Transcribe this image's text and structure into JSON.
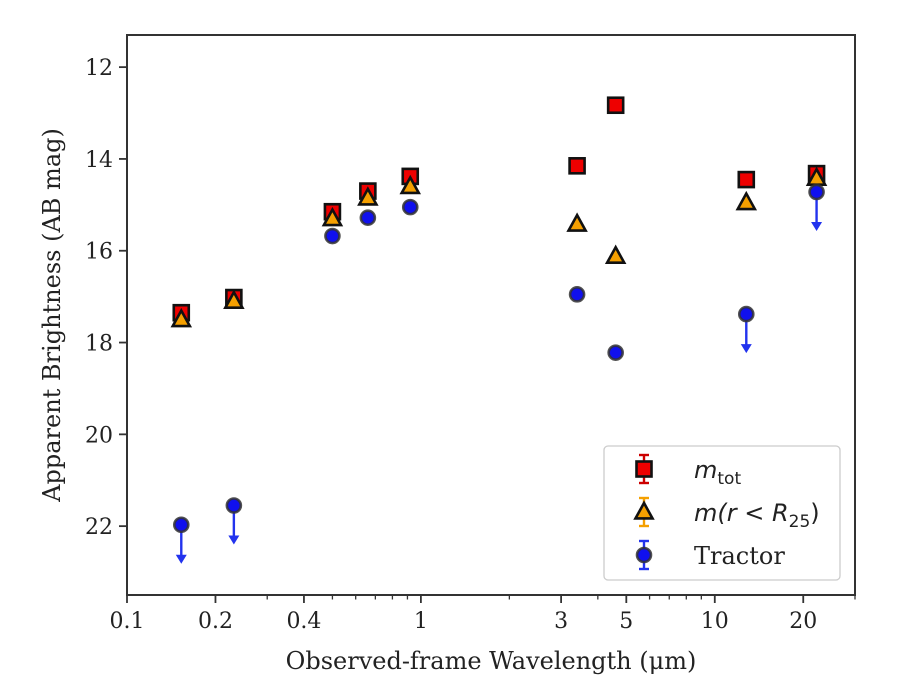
{
  "chart_data": {
    "type": "scatter",
    "title": "",
    "xlabel": "Observed-frame Wavelength (μm)",
    "ylabel": "Apparent Brightness (AB mag)",
    "xscale": "log",
    "xlim": [
      0.1,
      30
    ],
    "ylim": [
      23.5,
      11.3
    ],
    "y_inverted": true,
    "x_ticks": [
      {
        "value": 0.1,
        "label": "0.1"
      },
      {
        "value": 0.2,
        "label": "0.2"
      },
      {
        "value": 0.4,
        "label": "0.4"
      },
      {
        "value": 1,
        "label": "1"
      },
      {
        "value": 3,
        "label": "3"
      },
      {
        "value": 5,
        "label": "5"
      },
      {
        "value": 10,
        "label": "10"
      },
      {
        "value": 20,
        "label": "20"
      }
    ],
    "y_ticks": [
      {
        "value": 12,
        "label": "12"
      },
      {
        "value": 14,
        "label": "14"
      },
      {
        "value": 16,
        "label": "16"
      },
      {
        "value": 18,
        "label": "18"
      },
      {
        "value": 20,
        "label": "20"
      },
      {
        "value": 22,
        "label": "22"
      }
    ],
    "grid": false,
    "legend_position": "bottom-right",
    "legend_order": [
      "mtot",
      "mr25",
      "tractor"
    ],
    "series": [
      {
        "key": "mtot",
        "name_base": "m",
        "name_sub": "tot",
        "marker": "square",
        "fill": "#ee0000",
        "edge": "#111111",
        "errcolor": "#cc0000",
        "points": [
          {
            "x": 0.153,
            "y": 17.35
          },
          {
            "x": 0.231,
            "y": 17.02
          },
          {
            "x": 0.5,
            "y": 15.15
          },
          {
            "x": 0.66,
            "y": 14.7
          },
          {
            "x": 0.92,
            "y": 14.38
          },
          {
            "x": 3.4,
            "y": 14.15
          },
          {
            "x": 4.6,
            "y": 12.83
          },
          {
            "x": 12.8,
            "y": 14.45
          },
          {
            "x": 22.2,
            "y": 14.32
          }
        ]
      },
      {
        "key": "mr25",
        "name_base": "m(r < R",
        "name_sub": "25",
        "name_tail": ")",
        "marker": "triangle",
        "fill": "#f5a000",
        "edge": "#111111",
        "errcolor": "#f5a000",
        "points": [
          {
            "x": 0.153,
            "y": 17.5
          },
          {
            "x": 0.231,
            "y": 17.1
          },
          {
            "x": 0.5,
            "y": 15.3
          },
          {
            "x": 0.66,
            "y": 14.85
          },
          {
            "x": 0.92,
            "y": 14.6
          },
          {
            "x": 3.4,
            "y": 15.42
          },
          {
            "x": 4.6,
            "y": 16.12
          },
          {
            "x": 12.8,
            "y": 14.95
          },
          {
            "x": 22.2,
            "y": 14.42
          }
        ]
      },
      {
        "key": "tractor",
        "name": "Tractor",
        "marker": "circle",
        "fill": "#1010ee",
        "edge": "#333333",
        "errcolor": "#2233ee",
        "points": [
          {
            "x": 0.153,
            "y": 21.97,
            "upper_limit": true
          },
          {
            "x": 0.231,
            "y": 21.55,
            "upper_limit": true
          },
          {
            "x": 0.5,
            "y": 15.68
          },
          {
            "x": 0.66,
            "y": 15.28
          },
          {
            "x": 0.92,
            "y": 15.05
          },
          {
            "x": 3.4,
            "y": 16.95
          },
          {
            "x": 4.6,
            "y": 18.22
          },
          {
            "x": 12.8,
            "y": 17.38,
            "upper_limit": true
          },
          {
            "x": 22.2,
            "y": 14.72,
            "upper_limit": true
          }
        ]
      }
    ]
  }
}
